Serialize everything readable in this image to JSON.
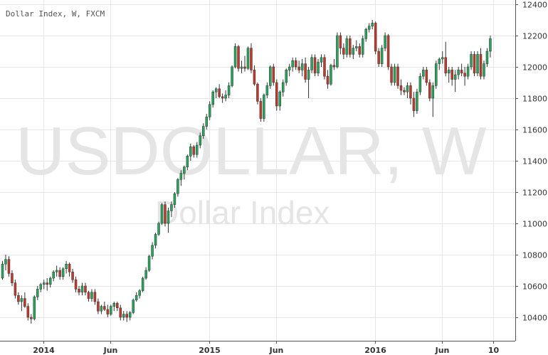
{
  "title": "Dollar Index, W, FXCM",
  "watermark_symbol": "USDOLLAR, W",
  "watermark_name": "Dollar Index",
  "colors": {
    "up": "#26a65b",
    "down": "#c0392b",
    "wick": "#333333",
    "grid": "#e6e6e6",
    "axis": "#555555",
    "watermark": "#e5e5e5"
  },
  "chart_data": {
    "type": "candlestick",
    "title": "Dollar Index, W, FXCM",
    "y_ticks": [
      10400,
      10600,
      10800,
      11000,
      11200,
      11400,
      11600,
      11800,
      12000,
      12200,
      12400
    ],
    "y_range": [
      10340,
      12400
    ],
    "x_ticks": [
      {
        "label": "2014",
        "index": 13
      },
      {
        "label": "Jun",
        "index": 34
      },
      {
        "label": "2015",
        "index": 65
      },
      {
        "label": "Jun",
        "index": 86
      },
      {
        "label": "2016",
        "index": 117
      },
      {
        "label": "Jun",
        "index": 138
      },
      {
        "label": "10",
        "index": 154
      }
    ],
    "grid": true,
    "candles": [
      [
        10650,
        10760,
        10640,
        10740
      ],
      [
        10740,
        10800,
        10700,
        10770
      ],
      [
        10770,
        10790,
        10660,
        10680
      ],
      [
        10680,
        10700,
        10600,
        10620
      ],
      [
        10620,
        10640,
        10520,
        10540
      ],
      [
        10540,
        10560,
        10480,
        10500
      ],
      [
        10500,
        10540,
        10440,
        10520
      ],
      [
        10520,
        10560,
        10460,
        10470
      ],
      [
        10470,
        10490,
        10380,
        10400
      ],
      [
        10400,
        10420,
        10360,
        10390
      ],
      [
        10390,
        10540,
        10380,
        10530
      ],
      [
        10530,
        10600,
        10510,
        10580
      ],
      [
        10580,
        10620,
        10560,
        10610
      ],
      [
        10610,
        10640,
        10580,
        10620
      ],
      [
        10620,
        10650,
        10570,
        10610
      ],
      [
        10610,
        10660,
        10590,
        10650
      ],
      [
        10650,
        10700,
        10630,
        10690
      ],
      [
        10690,
        10730,
        10660,
        10700
      ],
      [
        10700,
        10720,
        10640,
        10660
      ],
      [
        10660,
        10720,
        10640,
        10710
      ],
      [
        10710,
        10760,
        10680,
        10740
      ],
      [
        10740,
        10750,
        10660,
        10690
      ],
      [
        10690,
        10710,
        10620,
        10640
      ],
      [
        10640,
        10660,
        10560,
        10580
      ],
      [
        10580,
        10600,
        10540,
        10560
      ],
      [
        10560,
        10620,
        10540,
        10600
      ],
      [
        10600,
        10620,
        10540,
        10560
      ],
      [
        10560,
        10570,
        10500,
        10520
      ],
      [
        10520,
        10580,
        10500,
        10560
      ],
      [
        10560,
        10580,
        10480,
        10500
      ],
      [
        10500,
        10520,
        10420,
        10440
      ],
      [
        10440,
        10480,
        10420,
        10470
      ],
      [
        10470,
        10500,
        10440,
        10450
      ],
      [
        10450,
        10480,
        10400,
        10420
      ],
      [
        10420,
        10480,
        10410,
        10470
      ],
      [
        10470,
        10500,
        10440,
        10490
      ],
      [
        10490,
        10500,
        10440,
        10460
      ],
      [
        10460,
        10480,
        10380,
        10400
      ],
      [
        10400,
        10440,
        10380,
        10420
      ],
      [
        10420,
        10440,
        10370,
        10400
      ],
      [
        10400,
        10440,
        10380,
        10430
      ],
      [
        10430,
        10520,
        10420,
        10510
      ],
      [
        10510,
        10560,
        10500,
        10540
      ],
      [
        10540,
        10580,
        10520,
        10570
      ],
      [
        10570,
        10660,
        10560,
        10650
      ],
      [
        10650,
        10720,
        10640,
        10700
      ],
      [
        10700,
        10800,
        10690,
        10790
      ],
      [
        10790,
        10880,
        10770,
        10860
      ],
      [
        10860,
        10940,
        10840,
        10930
      ],
      [
        10930,
        11010,
        10920,
        11000
      ],
      [
        11000,
        11130,
        10990,
        11120
      ],
      [
        11120,
        11140,
        10980,
        11000
      ],
      [
        11000,
        11100,
        10940,
        11080
      ],
      [
        11080,
        11140,
        11040,
        11120
      ],
      [
        11120,
        11200,
        11100,
        11190
      ],
      [
        11190,
        11290,
        11170,
        11280
      ],
      [
        11280,
        11340,
        11240,
        11320
      ],
      [
        11320,
        11370,
        11280,
        11360
      ],
      [
        11360,
        11440,
        11340,
        11430
      ],
      [
        11430,
        11510,
        11400,
        11490
      ],
      [
        11490,
        11500,
        11420,
        11440
      ],
      [
        11440,
        11520,
        11420,
        11500
      ],
      [
        11500,
        11580,
        11480,
        11560
      ],
      [
        11560,
        11640,
        11540,
        11620
      ],
      [
        11620,
        11700,
        11600,
        11680
      ],
      [
        11680,
        11780,
        11660,
        11760
      ],
      [
        11760,
        11850,
        11740,
        11840
      ],
      [
        11840,
        11870,
        11800,
        11860
      ],
      [
        11860,
        11890,
        11800,
        11810
      ],
      [
        11810,
        11830,
        11770,
        11800
      ],
      [
        11800,
        11850,
        11780,
        11820
      ],
      [
        11820,
        11900,
        11800,
        11880
      ],
      [
        11880,
        12010,
        11870,
        12000
      ],
      [
        12000,
        12150,
        11990,
        12130
      ],
      [
        12130,
        12140,
        11970,
        11990
      ],
      [
        11990,
        12040,
        11960,
        12000
      ],
      [
        12000,
        12070,
        11970,
        11990
      ],
      [
        11990,
        12130,
        11980,
        12120
      ],
      [
        12120,
        12150,
        11960,
        11980
      ],
      [
        11980,
        12010,
        11880,
        11890
      ],
      [
        11890,
        11900,
        11760,
        11780
      ],
      [
        11780,
        11800,
        11650,
        11670
      ],
      [
        11670,
        11830,
        11650,
        11820
      ],
      [
        11820,
        11900,
        11800,
        11880
      ],
      [
        11880,
        12010,
        11860,
        12000
      ],
      [
        12000,
        12020,
        11880,
        11900
      ],
      [
        11900,
        11920,
        11720,
        11750
      ],
      [
        11750,
        11850,
        11720,
        11840
      ],
      [
        11840,
        11920,
        11810,
        11900
      ],
      [
        11900,
        11990,
        11880,
        11980
      ],
      [
        11980,
        12020,
        11940,
        12000
      ],
      [
        12000,
        12060,
        11970,
        12040
      ],
      [
        12040,
        12060,
        11980,
        12000
      ],
      [
        12000,
        12040,
        11960,
        11980
      ],
      [
        11980,
        12050,
        11940,
        12020
      ],
      [
        12020,
        12060,
        11900,
        11920
      ],
      [
        11920,
        12000,
        11800,
        11980
      ],
      [
        11980,
        12080,
        11960,
        12060
      ],
      [
        12060,
        12080,
        11940,
        11960
      ],
      [
        11960,
        12050,
        11940,
        12030
      ],
      [
        12030,
        12080,
        12000,
        12060
      ],
      [
        12060,
        12080,
        11920,
        11940
      ],
      [
        11940,
        11980,
        11860,
        11890
      ],
      [
        11890,
        12020,
        11880,
        12010
      ],
      [
        12010,
        12050,
        11980,
        12000
      ],
      [
        12000,
        12220,
        11990,
        12200
      ],
      [
        12200,
        12220,
        12080,
        12120
      ],
      [
        12120,
        12150,
        12050,
        12080
      ],
      [
        12080,
        12200,
        12060,
        12180
      ],
      [
        12180,
        12200,
        12060,
        12080
      ],
      [
        12080,
        12140,
        12050,
        12120
      ],
      [
        12120,
        12170,
        12100,
        12130
      ],
      [
        12130,
        12150,
        12060,
        12080
      ],
      [
        12080,
        12200,
        12060,
        12180
      ],
      [
        12180,
        12250,
        12160,
        12240
      ],
      [
        12240,
        12280,
        12220,
        12260
      ],
      [
        12260,
        12300,
        12240,
        12280
      ],
      [
        12280,
        12290,
        12080,
        12100
      ],
      [
        12100,
        12120,
        12000,
        12020
      ],
      [
        12020,
        12140,
        12000,
        12120
      ],
      [
        12120,
        12220,
        12100,
        12200
      ],
      [
        12200,
        12210,
        11980,
        12000
      ],
      [
        12000,
        12020,
        11880,
        11900
      ],
      [
        11900,
        12020,
        11880,
        12000
      ],
      [
        12000,
        12020,
        11860,
        11880
      ],
      [
        11880,
        11920,
        11820,
        11850
      ],
      [
        11850,
        11870,
        11820,
        11840
      ],
      [
        11840,
        11900,
        11800,
        11880
      ],
      [
        11880,
        11900,
        11760,
        11800
      ],
      [
        11800,
        11840,
        11680,
        11720
      ],
      [
        11720,
        11860,
        11700,
        11840
      ],
      [
        11840,
        11960,
        11820,
        11940
      ],
      [
        11940,
        12000,
        11920,
        11980
      ],
      [
        11980,
        12000,
        11880,
        11900
      ],
      [
        11900,
        11920,
        11780,
        11800
      ],
      [
        11800,
        11900,
        11680,
        11880
      ],
      [
        11880,
        12040,
        11860,
        12020
      ],
      [
        12020,
        12060,
        11980,
        12050
      ],
      [
        12050,
        12100,
        12020,
        12060
      ],
      [
        12060,
        12160,
        11940,
        11960
      ],
      [
        11960,
        12000,
        11900,
        11980
      ],
      [
        11980,
        12000,
        11880,
        11920
      ],
      [
        11920,
        11980,
        11840,
        11950
      ],
      [
        11950,
        12000,
        11920,
        11980
      ],
      [
        11980,
        12020,
        11940,
        11960
      ],
      [
        11960,
        12000,
        11880,
        11940
      ],
      [
        11940,
        12020,
        11920,
        12000
      ],
      [
        12000,
        12100,
        11980,
        12080
      ],
      [
        12080,
        12100,
        11940,
        11960
      ],
      [
        11960,
        12100,
        11940,
        12080
      ],
      [
        12080,
        12120,
        11920,
        11940
      ],
      [
        11940,
        12040,
        11920,
        12020
      ],
      [
        12020,
        12120,
        12000,
        12100
      ],
      [
        12100,
        12200,
        12060,
        12180
      ]
    ]
  }
}
